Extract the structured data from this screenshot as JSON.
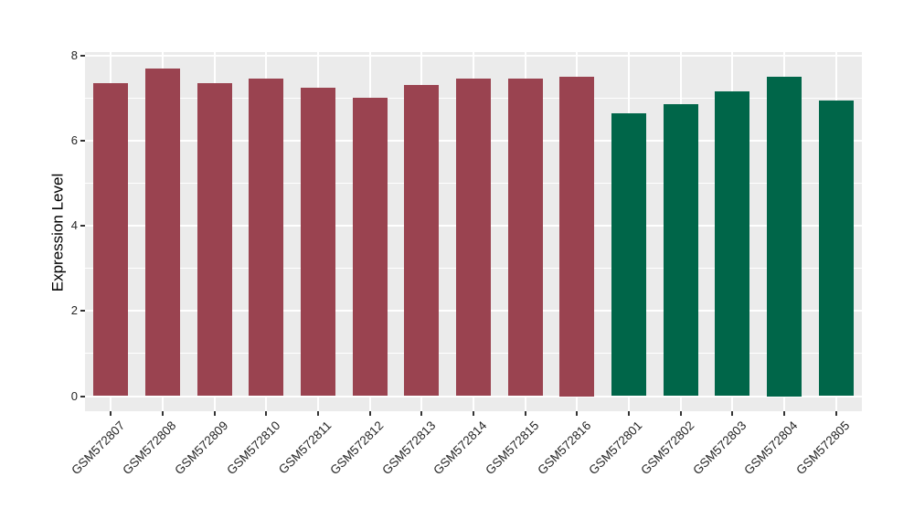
{
  "chart_data": {
    "type": "bar",
    "title": "",
    "xlabel": "",
    "ylabel": "Expression Level",
    "categories": [
      "GSM572807",
      "GSM572808",
      "GSM572809",
      "GSM572810",
      "GSM572811",
      "GSM572812",
      "GSM572813",
      "GSM572814",
      "GSM572815",
      "GSM572816",
      "GSM572801",
      "GSM572802",
      "GSM572803",
      "GSM572804",
      "GSM572805"
    ],
    "values": [
      7.35,
      7.7,
      7.35,
      7.45,
      7.25,
      7.0,
      7.3,
      7.45,
      7.45,
      7.5,
      6.65,
      6.85,
      7.15,
      7.5,
      6.95
    ],
    "groups": [
      "a",
      "a",
      "a",
      "a",
      "a",
      "a",
      "a",
      "a",
      "a",
      "a",
      "b",
      "b",
      "b",
      "b",
      "b"
    ],
    "group_colors": {
      "a": "#9A4350",
      "b": "#006649"
    },
    "y_ticks": [
      0,
      2,
      4,
      6,
      8
    ],
    "y_tick_labels": [
      "0",
      "2",
      "4",
      "6",
      "8"
    ],
    "y_minor_ticks": [
      1,
      3,
      5,
      7
    ],
    "ylim": [
      -0.4,
      8.07
    ],
    "grid": true,
    "legend": "none",
    "panel_bg": "#EBEBEB",
    "grid_color": "#FFFFFF",
    "tick_color": "#333333",
    "tick_label_color": "#262626"
  }
}
